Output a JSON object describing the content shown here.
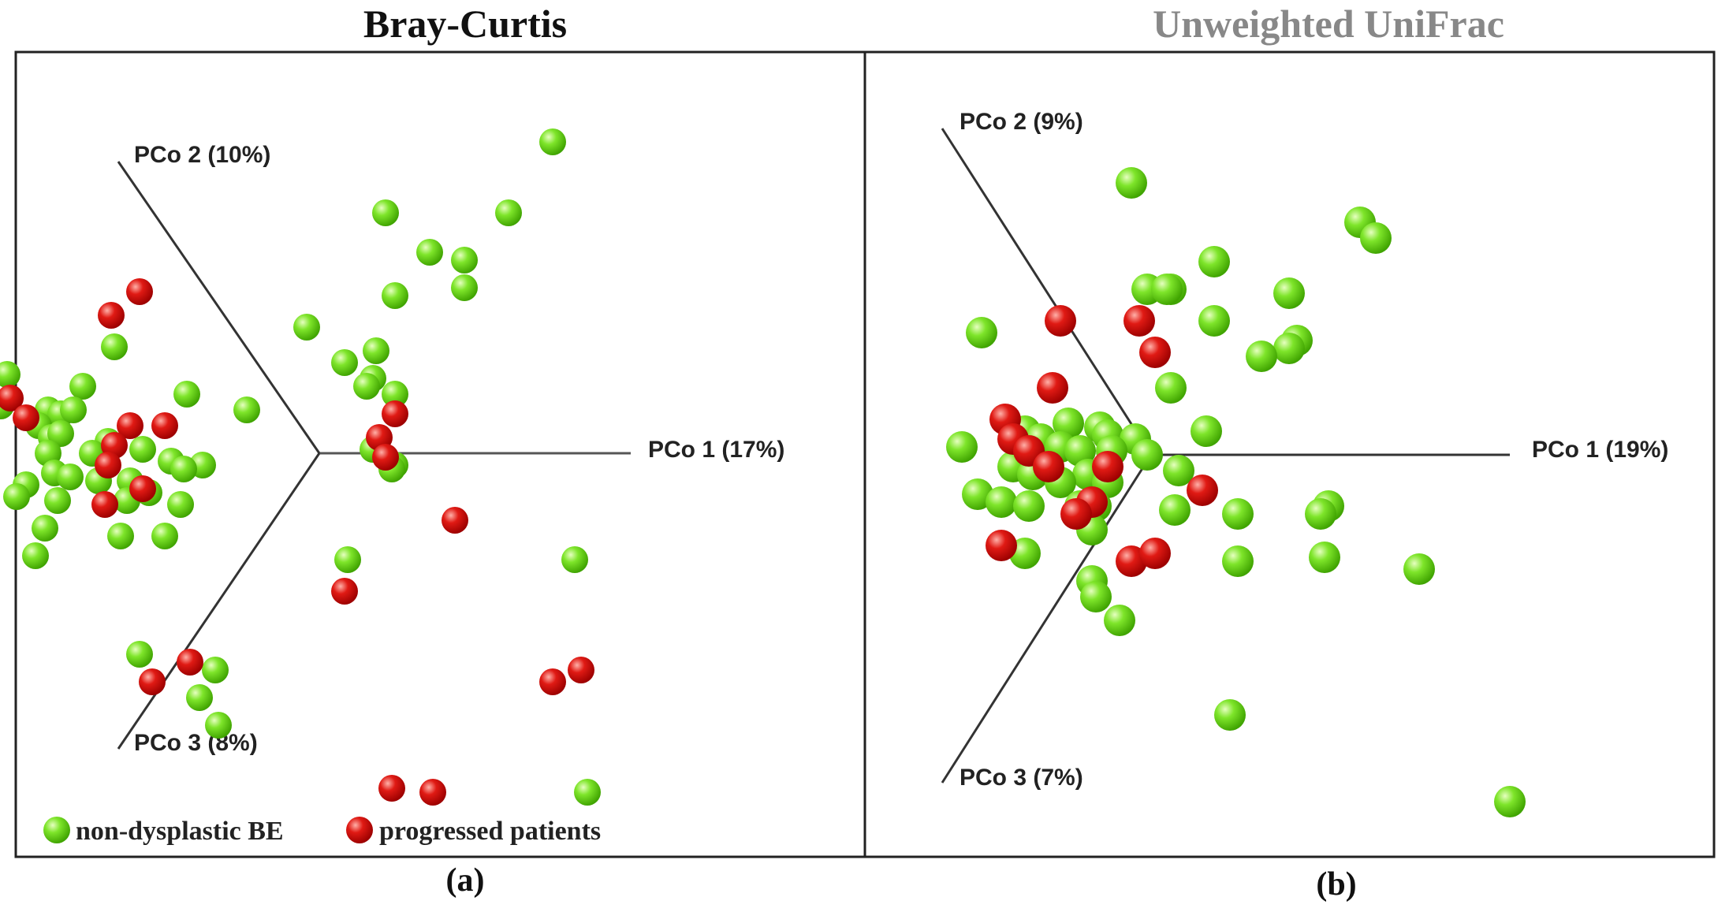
{
  "colors": {
    "non_dysplastic": "#66dd11",
    "progressed": "#dd1111",
    "title_a": "#111111",
    "title_b": "#888888"
  },
  "legend": {
    "non_dysplastic_label": "non-dysplastic BE",
    "progressed_label": "progressed patients"
  },
  "chart_data": [
    {
      "type": "scatter",
      "title": "Bray-Curtis",
      "caption": "(a)",
      "axes": {
        "pc1": "PCo 1 (17%)",
        "pc2": "PCo 2 (10%)",
        "pc3": "PCo 3 (8%)"
      },
      "projection": "3D PCoA shown as 2D projection; points given as projected coordinates (pc1 horizontal, vertical)",
      "xlim": [
        -1,
        1
      ],
      "ylim": [
        -1,
        1
      ],
      "series": [
        {
          "name": "non-dysplastic BE",
          "points": [
            [
              0.74,
              0.79
            ],
            [
              0.21,
              0.61
            ],
            [
              0.6,
              0.61
            ],
            [
              0.35,
              0.51
            ],
            [
              0.46,
              0.49
            ],
            [
              0.24,
              0.4
            ],
            [
              0.46,
              0.42
            ],
            [
              0.18,
              0.26
            ],
            [
              -0.04,
              0.32
            ],
            [
              -0.65,
              0.27
            ],
            [
              0.08,
              0.23
            ],
            [
              0.17,
              0.19
            ],
            [
              0.15,
              0.17
            ],
            [
              0.24,
              0.15
            ],
            [
              -0.99,
              0.2
            ],
            [
              -0.75,
              0.17
            ],
            [
              -0.42,
              0.15
            ],
            [
              -0.23,
              0.11
            ],
            [
              -1.01,
              0.12
            ],
            [
              -0.86,
              0.11
            ],
            [
              -0.82,
              0.1
            ],
            [
              -0.78,
              0.11
            ],
            [
              -0.89,
              0.07
            ],
            [
              -0.85,
              0.04
            ],
            [
              -0.82,
              0.05
            ],
            [
              -0.67,
              0.03
            ],
            [
              -0.86,
              0.0
            ],
            [
              -0.72,
              0.0
            ],
            [
              -0.56,
              0.01
            ],
            [
              -0.47,
              -0.02
            ],
            [
              -0.37,
              -0.03
            ],
            [
              0.24,
              -0.03
            ],
            [
              -0.84,
              -0.05
            ],
            [
              -0.79,
              -0.06
            ],
            [
              -0.7,
              -0.07
            ],
            [
              -0.93,
              -0.08
            ],
            [
              -0.6,
              -0.07
            ],
            [
              -0.54,
              -0.1
            ],
            [
              -0.96,
              -0.11
            ],
            [
              -0.83,
              -0.12
            ],
            [
              -0.61,
              -0.12
            ],
            [
              -0.44,
              -0.13
            ],
            [
              0.17,
              0.01
            ],
            [
              -0.43,
              -0.04
            ],
            [
              0.23,
              -0.04
            ],
            [
              -0.87,
              -0.19
            ],
            [
              -0.9,
              -0.26
            ],
            [
              -0.63,
              -0.21
            ],
            [
              -0.49,
              -0.21
            ],
            [
              0.09,
              -0.27
            ],
            [
              0.81,
              -0.27
            ],
            [
              -0.57,
              -0.51
            ],
            [
              -0.33,
              -0.55
            ],
            [
              -0.38,
              -0.62
            ],
            [
              -0.32,
              -0.69
            ],
            [
              0.85,
              -0.86
            ]
          ]
        },
        {
          "name": "progressed patients",
          "points": [
            [
              -0.57,
              0.41
            ],
            [
              -0.66,
              0.35
            ],
            [
              -0.98,
              0.14
            ],
            [
              -0.93,
              0.09
            ],
            [
              -0.6,
              0.07
            ],
            [
              -0.49,
              0.07
            ],
            [
              -0.65,
              0.02
            ],
            [
              -0.67,
              -0.03
            ],
            [
              -0.56,
              -0.09
            ],
            [
              -0.68,
              -0.13
            ],
            [
              0.19,
              0.04
            ],
            [
              0.21,
              -0.01
            ],
            [
              0.24,
              0.1
            ],
            [
              0.43,
              -0.17
            ],
            [
              0.08,
              -0.35
            ],
            [
              -0.41,
              -0.53
            ],
            [
              -0.53,
              -0.58
            ],
            [
              0.83,
              -0.55
            ],
            [
              0.74,
              -0.58
            ],
            [
              0.23,
              -0.85
            ],
            [
              0.36,
              -0.86
            ]
          ]
        }
      ]
    },
    {
      "type": "scatter",
      "title": "Unweighted UniFrac",
      "caption": "(b)",
      "axes": {
        "pc1": "PCo 1 (19%)",
        "pc2": "PCo 2 (9%)",
        "pc3": "PCo 3 (7%)"
      },
      "projection": "3D PCoA shown as 2D projection; points given as projected coordinates (pc1 horizontal, vertical)",
      "xlim": [
        -1,
        1
      ],
      "ylim": [
        -1,
        1
      ],
      "series": [
        {
          "name": "non-dysplastic BE",
          "points": [
            [
              -0.05,
              0.69
            ],
            [
              0.53,
              0.59
            ],
            [
              0.57,
              0.55
            ],
            [
              0.16,
              0.49
            ],
            [
              0.05,
              0.42
            ],
            [
              -0.01,
              0.42
            ],
            [
              0.04,
              0.42
            ],
            [
              0.35,
              0.41
            ],
            [
              0.16,
              0.34
            ],
            [
              0.37,
              0.29
            ],
            [
              0.35,
              0.27
            ],
            [
              -0.43,
              0.31
            ],
            [
              0.28,
              0.25
            ],
            [
              0.05,
              0.17
            ],
            [
              -0.21,
              0.08
            ],
            [
              -0.13,
              0.07
            ],
            [
              -0.11,
              0.05
            ],
            [
              -0.32,
              0.06
            ],
            [
              0.14,
              0.06
            ],
            [
              -0.04,
              0.04
            ],
            [
              -0.48,
              0.02
            ],
            [
              -0.28,
              0.04
            ],
            [
              -0.23,
              0.02
            ],
            [
              -0.1,
              0.01
            ],
            [
              -0.18,
              0.01
            ],
            [
              -0.31,
              0.01
            ],
            [
              -0.01,
              0.0
            ],
            [
              -0.35,
              -0.03
            ],
            [
              -0.3,
              -0.05
            ],
            [
              -0.16,
              -0.05
            ],
            [
              -0.23,
              -0.07
            ],
            [
              -0.11,
              -0.07
            ],
            [
              0.07,
              -0.04
            ],
            [
              -0.44,
              -0.1
            ],
            [
              -0.38,
              -0.12
            ],
            [
              -0.31,
              -0.13
            ],
            [
              -0.18,
              -0.13
            ],
            [
              -0.14,
              -0.13
            ],
            [
              0.06,
              -0.14
            ],
            [
              0.22,
              -0.15
            ],
            [
              0.45,
              -0.13
            ],
            [
              0.43,
              -0.15
            ],
            [
              -0.15,
              -0.19
            ],
            [
              -0.32,
              -0.25
            ],
            [
              0.22,
              -0.27
            ],
            [
              0.44,
              -0.26
            ],
            [
              0.68,
              -0.29
            ],
            [
              -0.15,
              -0.32
            ],
            [
              -0.14,
              -0.36
            ],
            [
              -0.08,
              -0.42
            ],
            [
              0.2,
              -0.66
            ],
            [
              0.91,
              -0.88
            ]
          ]
        },
        {
          "name": "progressed patients",
          "points": [
            [
              -0.23,
              0.34
            ],
            [
              -0.03,
              0.34
            ],
            [
              0.01,
              0.26
            ],
            [
              -0.25,
              0.17
            ],
            [
              -0.37,
              0.09
            ],
            [
              -0.35,
              0.04
            ],
            [
              -0.31,
              0.01
            ],
            [
              -0.26,
              -0.03
            ],
            [
              -0.11,
              -0.03
            ],
            [
              0.13,
              -0.09
            ],
            [
              -0.15,
              -0.12
            ],
            [
              -0.19,
              -0.15
            ],
            [
              -0.38,
              -0.23
            ],
            [
              -0.05,
              -0.27
            ],
            [
              0.01,
              -0.25
            ]
          ]
        }
      ]
    }
  ]
}
